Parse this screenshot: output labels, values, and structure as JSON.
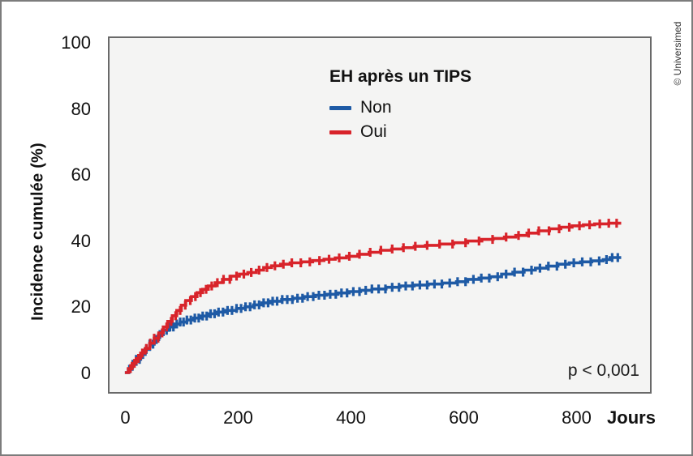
{
  "credit": "© Universimed",
  "annotation": {
    "p_value": "p < 0,001"
  },
  "chart_data": {
    "type": "line",
    "subtype": "cumulative-incidence-step-curves-with-censor-marks",
    "legend_title": "EH après un TIPS",
    "xlabel": "Jours",
    "ylabel": "Incidence cumulée (%)",
    "xticks": [
      0,
      200,
      400,
      600,
      800
    ],
    "yticks": [
      0,
      20,
      40,
      60,
      80,
      100
    ],
    "xlim": [
      -28,
      935
    ],
    "ylim": [
      -6,
      102
    ],
    "grid": false,
    "legend_position": "inside-top-center",
    "plot_background": "#f4f4f3",
    "frame_color": "#696969",
    "series": [
      {
        "name": "Non",
        "color": "#1e5aa5",
        "points": [
          [
            2,
            0
          ],
          [
            8,
            1
          ],
          [
            15,
            2.5
          ],
          [
            22,
            4
          ],
          [
            30,
            5.5
          ],
          [
            38,
            7
          ],
          [
            46,
            8.6
          ],
          [
            54,
            10
          ],
          [
            62,
            11.5
          ],
          [
            70,
            12.8
          ],
          [
            80,
            13.8
          ],
          [
            90,
            14.7
          ],
          [
            100,
            15.3
          ],
          [
            112,
            15.9
          ],
          [
            124,
            16.5
          ],
          [
            136,
            17.1
          ],
          [
            150,
            17.8
          ],
          [
            165,
            18.3
          ],
          [
            180,
            18.8
          ],
          [
            200,
            19.4
          ],
          [
            215,
            19.9
          ],
          [
            230,
            20.5
          ],
          [
            245,
            21.1
          ],
          [
            260,
            21.6
          ],
          [
            280,
            22.1
          ],
          [
            300,
            22.5
          ],
          [
            320,
            23.0
          ],
          [
            340,
            23.4
          ],
          [
            360,
            23.7
          ],
          [
            380,
            24.1
          ],
          [
            400,
            24.5
          ],
          [
            420,
            24.9
          ],
          [
            440,
            25.3
          ],
          [
            465,
            25.8
          ],
          [
            490,
            26.2
          ],
          [
            515,
            26.5
          ],
          [
            540,
            26.8
          ],
          [
            565,
            27.1
          ],
          [
            590,
            27.5
          ],
          [
            610,
            28.2
          ],
          [
            630,
            28.6
          ],
          [
            650,
            29.0
          ],
          [
            670,
            29.8
          ],
          [
            690,
            30.4
          ],
          [
            710,
            31.0
          ],
          [
            730,
            31.6
          ],
          [
            750,
            32.2
          ],
          [
            770,
            32.8
          ],
          [
            790,
            33.2
          ],
          [
            810,
            33.5
          ],
          [
            830,
            33.8
          ],
          [
            850,
            34.2
          ],
          [
            862,
            34.8
          ],
          [
            882,
            34.8
          ]
        ],
        "censor_days": [
          10,
          16,
          22,
          28,
          34,
          40,
          46,
          52,
          58,
          64,
          70,
          76,
          82,
          88,
          94,
          100,
          106,
          112,
          119,
          126,
          133,
          140,
          147,
          154,
          161,
          168,
          176,
          184,
          192,
          200,
          208,
          216,
          224,
          232,
          240,
          248,
          256,
          264,
          272,
          281,
          290,
          299,
          308,
          317,
          326,
          336,
          346,
          356,
          366,
          376,
          386,
          396,
          407,
          418,
          429,
          440,
          452,
          464,
          476,
          488,
          500,
          512,
          525,
          538,
          551,
          564,
          578,
          592,
          606,
          620,
          634,
          648,
          663,
          678,
          693,
          708,
          723,
          738,
          753,
          768,
          783,
          798,
          813,
          828,
          843,
          856,
          866,
          876
        ]
      },
      {
        "name": "Oui",
        "color": "#d8232a",
        "points": [
          [
            2,
            0
          ],
          [
            8,
            1.2
          ],
          [
            15,
            2.8
          ],
          [
            22,
            4.3
          ],
          [
            30,
            5.9
          ],
          [
            38,
            7.3
          ],
          [
            46,
            8.9
          ],
          [
            54,
            10.4
          ],
          [
            62,
            12.0
          ],
          [
            70,
            13.8
          ],
          [
            78,
            15.5
          ],
          [
            86,
            17.2
          ],
          [
            94,
            18.8
          ],
          [
            102,
            20.4
          ],
          [
            110,
            21.8
          ],
          [
            120,
            23.0
          ],
          [
            130,
            24.2
          ],
          [
            140,
            25.2
          ],
          [
            150,
            26.2
          ],
          [
            162,
            27.2
          ],
          [
            175,
            28.2
          ],
          [
            190,
            29.2
          ],
          [
            205,
            29.8
          ],
          [
            220,
            30.3
          ],
          [
            235,
            31.0
          ],
          [
            248,
            31.8
          ],
          [
            262,
            32.3
          ],
          [
            278,
            32.8
          ],
          [
            295,
            33.2
          ],
          [
            315,
            33.5
          ],
          [
            335,
            33.9
          ],
          [
            355,
            34.3
          ],
          [
            375,
            34.7
          ],
          [
            395,
            35.2
          ],
          [
            415,
            35.8
          ],
          [
            435,
            36.4
          ],
          [
            455,
            37.0
          ],
          [
            475,
            37.4
          ],
          [
            495,
            37.8
          ],
          [
            515,
            38.2
          ],
          [
            535,
            38.5
          ],
          [
            560,
            38.9
          ],
          [
            585,
            39.3
          ],
          [
            610,
            39.8
          ],
          [
            635,
            40.3
          ],
          [
            655,
            40.6
          ],
          [
            675,
            41.0
          ],
          [
            695,
            41.5
          ],
          [
            715,
            42.2
          ],
          [
            735,
            42.9
          ],
          [
            755,
            43.5
          ],
          [
            775,
            44.0
          ],
          [
            795,
            44.4
          ],
          [
            815,
            44.7
          ],
          [
            835,
            45.0
          ],
          [
            860,
            45.2
          ],
          [
            882,
            45.2
          ]
        ],
        "censor_days": [
          12,
          19,
          26,
          33,
          40,
          47,
          54,
          61,
          68,
          76,
          84,
          92,
          100,
          109,
          118,
          127,
          136,
          146,
          156,
          166,
          177,
          188,
          200,
          213,
          226,
          240,
          254,
          268,
          283,
          298,
          314,
          330,
          347,
          364,
          382,
          400,
          418,
          437,
          456,
          476,
          496,
          517,
          538,
          560,
          583,
          606,
          630,
          654,
          678,
          700,
          718,
          736,
          754,
          772,
          790,
          808,
          826,
          844,
          860,
          874
        ]
      }
    ]
  }
}
